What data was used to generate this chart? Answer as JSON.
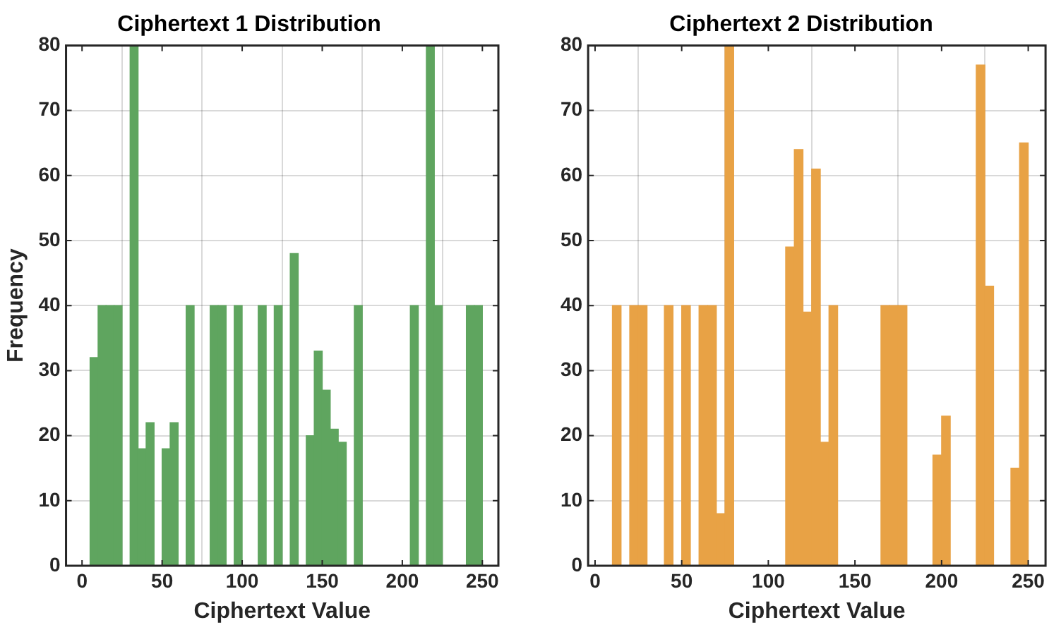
{
  "chart_data": [
    {
      "type": "histogram",
      "title": "Ciphertext 1 Distribution",
      "xlabel": "Ciphertext Value",
      "ylabel": "Frequency",
      "bins": [
        0,
        5,
        10,
        15,
        20,
        25,
        30,
        35,
        40,
        45,
        50,
        55,
        60,
        65,
        70,
        75,
        80,
        85,
        90,
        95,
        100,
        105,
        110,
        115,
        120,
        125,
        130,
        135,
        140,
        145,
        150,
        155,
        160,
        165,
        170,
        175,
        180,
        185,
        190,
        195,
        200,
        205,
        210,
        215,
        220,
        225,
        230,
        235,
        240,
        245,
        250
      ],
      "values": [
        0,
        32,
        40,
        40,
        40,
        0,
        80,
        18,
        22,
        0,
        18,
        22,
        0,
        40,
        0,
        0,
        40,
        40,
        0,
        40,
        0,
        0,
        40,
        0,
        40,
        0,
        48,
        0,
        20,
        33,
        27,
        21,
        19,
        0,
        40,
        0,
        0,
        0,
        0,
        0,
        0,
        40,
        0,
        80,
        40,
        0,
        0,
        0,
        40,
        40
      ],
      "color": "#5fa55f",
      "xlim": [
        -10,
        260
      ],
      "xticks": [
        0,
        50,
        100,
        150,
        200,
        250
      ],
      "ylim": [
        0,
        80
      ],
      "yticks": [
        0,
        10,
        20,
        30,
        40,
        50,
        60,
        70,
        80
      ],
      "grid": true
    },
    {
      "type": "histogram",
      "title": "Ciphertext 2 Distribution",
      "xlabel": "Ciphertext Value",
      "bins": [
        0,
        5,
        10,
        15,
        20,
        25,
        30,
        35,
        40,
        45,
        50,
        55,
        60,
        65,
        70,
        75,
        80,
        85,
        90,
        95,
        100,
        105,
        110,
        115,
        120,
        125,
        130,
        135,
        140,
        145,
        150,
        155,
        160,
        165,
        170,
        175,
        180,
        185,
        190,
        195,
        200,
        205,
        210,
        215,
        220,
        225,
        230,
        235,
        240,
        245,
        250
      ],
      "values": [
        0,
        0,
        40,
        0,
        40,
        40,
        0,
        0,
        40,
        0,
        40,
        0,
        40,
        40,
        8,
        80,
        0,
        0,
        0,
        0,
        0,
        0,
        49,
        64,
        39,
        61,
        19,
        40,
        0,
        0,
        0,
        0,
        0,
        40,
        40,
        40,
        0,
        0,
        0,
        17,
        23,
        0,
        0,
        0,
        77,
        43,
        0,
        0,
        15,
        65
      ],
      "color": "#e8a245",
      "xlim": [
        -4,
        260
      ],
      "xticks": [
        0,
        50,
        100,
        150,
        200,
        250
      ],
      "ylim": [
        0,
        80
      ],
      "yticks": [
        0,
        10,
        20,
        30,
        40,
        50,
        60,
        70,
        80
      ],
      "grid": true
    }
  ]
}
